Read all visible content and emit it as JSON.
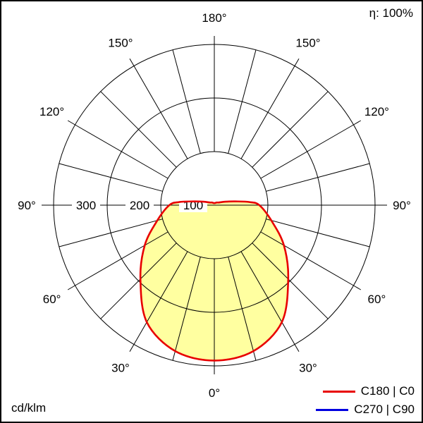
{
  "frame": {
    "efficiency_label": "η: 100%",
    "unit_label": "cd/klm"
  },
  "legend": {
    "items": [
      {
        "label": "C180 | C0",
        "color": "#e80000"
      },
      {
        "label": "C270 | C90",
        "color": "#0000e0"
      }
    ]
  },
  "chart_data": {
    "type": "line",
    "projection": "polar",
    "units": "cd/klm",
    "angle_zero_direction": "down",
    "angle_tick_labels_deg": [
      0,
      30,
      60,
      90,
      120,
      150,
      180
    ],
    "spoke_step_deg": 15,
    "radial_ticks": [
      100,
      200,
      300
    ],
    "radial_max": 300,
    "grid_on": true,
    "legend_position": "bottom-right",
    "efficiency_percent": 100,
    "series": [
      {
        "name": "C180 | C0",
        "color": "#e80000",
        "fill": "#ffffa0",
        "symmetric_about_vertical": true,
        "angles_deg": [
          0,
          15,
          30,
          45,
          60,
          75,
          90,
          95,
          100,
          105,
          110,
          120,
          135,
          150,
          165,
          180
        ],
        "values_cd_per_klm": [
          290,
          282,
          252,
          195,
          150,
          110,
          84,
          66,
          40,
          26,
          18,
          10,
          7,
          5,
          4,
          4
        ]
      },
      {
        "name": "C270 | C90",
        "color": "#0000e0",
        "visible_in_plot": false
      }
    ]
  }
}
